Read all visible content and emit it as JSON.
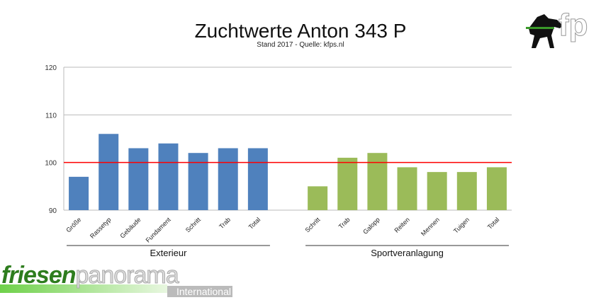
{
  "chart_data": {
    "type": "bar",
    "title": "Zuchtwerte Anton 343 P",
    "subtitle": "Stand 2017 - Quelle: kfps.nl",
    "ylim": [
      90,
      120
    ],
    "yticks": [
      90,
      100,
      110,
      120
    ],
    "reference_line": 100,
    "reference_color": "#ff0000",
    "grid": true,
    "groups": [
      {
        "name": "Exterieur",
        "color": "#4f81bd",
        "categories": [
          "Größe",
          "Rassetyp",
          "Gebäude",
          "Fundament",
          "Schritt",
          "Trab",
          "Total"
        ],
        "values": [
          97,
          106,
          103,
          104,
          102,
          103,
          103
        ]
      },
      {
        "name": "Sportveranlagung",
        "color": "#9bbb59",
        "categories": [
          "Schritt",
          "Trab",
          "Galopp",
          "Reiten",
          "Mennen",
          "Tuigen",
          "Total"
        ],
        "values": [
          95,
          101,
          102,
          99,
          98,
          98,
          99
        ]
      }
    ]
  },
  "logo": {
    "top_right": "fp",
    "bottom_left_main": "friesen",
    "bottom_left_main2": "panorama",
    "bottom_left_sub": "International"
  }
}
